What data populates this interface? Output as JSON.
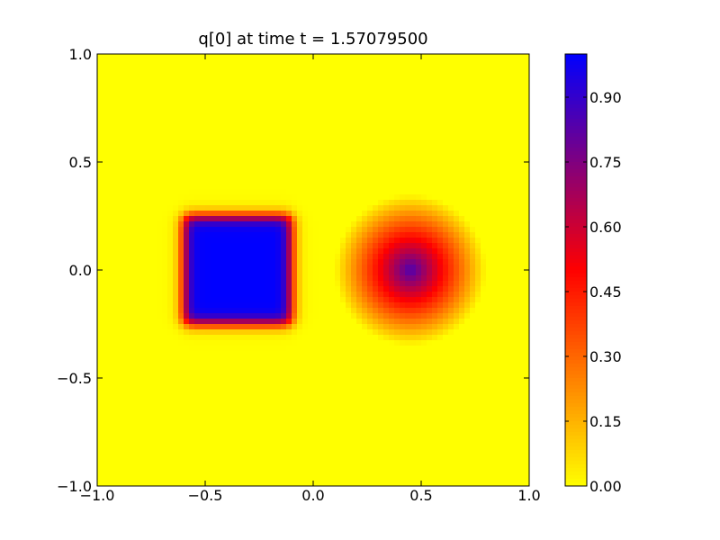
{
  "chart_data": {
    "type": "heatmap",
    "title": "q[0] at time t =     1.57079500",
    "xlim": [
      -1.0,
      1.0
    ],
    "ylim": [
      -1.0,
      1.0
    ],
    "x_ticks": [
      -1.0,
      -0.5,
      0.0,
      0.5,
      1.0
    ],
    "x_tick_labels": [
      "−1.0",
      "−0.5",
      "0.0",
      "0.5",
      "1.0"
    ],
    "y_ticks": [
      -1.0,
      -0.5,
      0.0,
      0.5,
      1.0
    ],
    "y_tick_labels": [
      "−1.0",
      "−0.5",
      "0.0",
      "0.5",
      "1.0"
    ],
    "colorbar": {
      "range": [
        0.0,
        1.0
      ],
      "ticks": [
        0.0,
        0.15,
        0.3,
        0.45,
        0.6,
        0.75,
        0.9
      ],
      "tick_labels": [
        "0.00",
        "0.15",
        "0.30",
        "0.45",
        "0.60",
        "0.75",
        "0.90"
      ],
      "colormap": [
        "#ffff00",
        "#ff0000",
        "#0000ff"
      ]
    },
    "grid": false,
    "features": [
      {
        "shape": "square",
        "x_range": [
          -0.6,
          -0.1
        ],
        "y_range": [
          -0.25,
          0.25
        ],
        "peak_value": 1.0,
        "edge_smoothing": 0.05
      },
      {
        "shape": "cone",
        "center": [
          0.45,
          0.0
        ],
        "radius": 0.35,
        "peak_value": 0.85
      }
    ],
    "background_value": 0.0
  }
}
